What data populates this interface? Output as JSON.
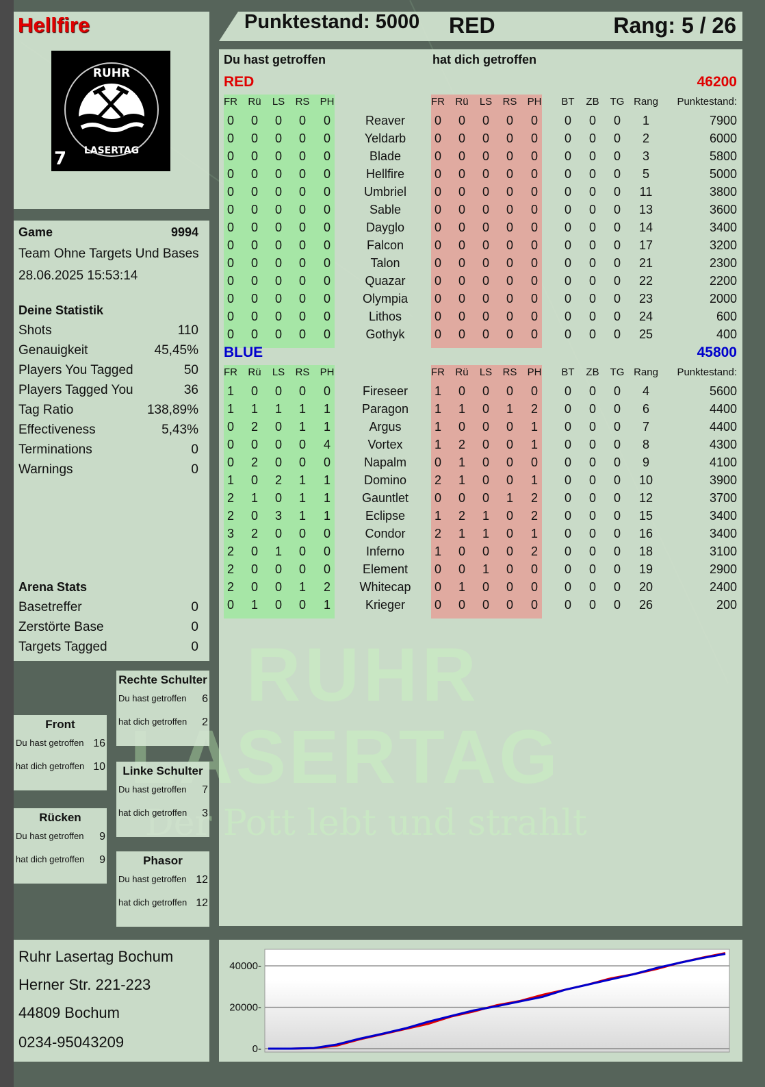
{
  "player": {
    "name": "Hellfire",
    "logo_text": "RUHR LASERTAG",
    "logo_number": "7"
  },
  "header": {
    "score_label": "Punktestand: 5000",
    "team": "RED",
    "rank_label": "Rang: 5 / 26"
  },
  "game": {
    "label": "Game",
    "number": "9994",
    "mode": "Team Ohne Targets Und Bases",
    "datetime": "28.06.2025 15:53:14"
  },
  "stats": {
    "title": "Deine Statistik",
    "items": [
      {
        "label": "Shots",
        "value": "110"
      },
      {
        "label": "Genauigkeit",
        "value": "45,45%"
      },
      {
        "label": "Players You Tagged",
        "value": "50"
      },
      {
        "label": "Players Tagged You",
        "value": "36"
      },
      {
        "label": "Tag Ratio",
        "value": "138,89%"
      },
      {
        "label": "Effectiveness",
        "value": "5,43%"
      },
      {
        "label": "Terminations",
        "value": "0"
      },
      {
        "label": "Warnings",
        "value": "0"
      }
    ]
  },
  "arena": {
    "title": "Arena Stats",
    "items": [
      {
        "label": "Basetreffer",
        "value": "0"
      },
      {
        "label": "Zerstörte Base",
        "value": "0"
      },
      {
        "label": "Targets Tagged",
        "value": "0"
      }
    ]
  },
  "hitzones": [
    {
      "title": "Rechte Schulter",
      "you_hit_label": "Du hast getroffen",
      "you_hit": "6",
      "hit_you_label": "hat dich getroffen",
      "hit_you": "2"
    },
    {
      "title": "Front",
      "you_hit_label": "Du hast getroffen",
      "you_hit": "16",
      "hit_you_label": "hat dich getroffen",
      "hit_you": "10"
    },
    {
      "title": "Linke Schulter",
      "you_hit_label": "Du hast getroffen",
      "you_hit": "7",
      "hit_you_label": "hat dich getroffen",
      "hit_you": "3"
    },
    {
      "title": "Rücken",
      "you_hit_label": "Du hast getroffen",
      "you_hit": "9",
      "hit_you_label": "hat dich getroffen",
      "hit_you": "9"
    },
    {
      "title": "Phasor",
      "you_hit_label": "Du hast getroffen",
      "you_hit": "12",
      "hit_you_label": "hat dich getroffen",
      "hit_you": "12"
    }
  ],
  "address": {
    "line1": "Ruhr Lasertag Bochum",
    "line2": "Herner Str. 221-223",
    "line3": "44809 Bochum",
    "line4": "0234-95043209"
  },
  "watermark": {
    "line1": "RUHR",
    "line2": "LASERTAG",
    "line3": "Der Pott lebt und strahlt"
  },
  "table": {
    "you_hit_heading": "Du hast getroffen",
    "hit_you_heading": "hat dich getroffen",
    "hit_columns": [
      "FR",
      "Rü",
      "LS",
      "RS",
      "PH"
    ],
    "extra_columns": [
      "BT",
      "ZB",
      "TG",
      "Rang",
      "Punktestand:"
    ],
    "colors": {
      "you_hit_bg": "#a6e6a6",
      "hit_you_bg": "#e0aaa0",
      "red": "#e00000",
      "blue": "#0000cc"
    },
    "teams": [
      {
        "name": "RED",
        "score": "46200",
        "color": "#e00000",
        "players": [
          {
            "name": "Reaver",
            "you_hit": [
              0,
              0,
              0,
              0,
              0
            ],
            "hit_you": [
              0,
              0,
              0,
              0,
              0
            ],
            "bt": 0,
            "zb": 0,
            "tg": 0,
            "rank": 1,
            "score": 7900
          },
          {
            "name": "Yeldarb",
            "you_hit": [
              0,
              0,
              0,
              0,
              0
            ],
            "hit_you": [
              0,
              0,
              0,
              0,
              0
            ],
            "bt": 0,
            "zb": 0,
            "tg": 0,
            "rank": 2,
            "score": 6000
          },
          {
            "name": "Blade",
            "you_hit": [
              0,
              0,
              0,
              0,
              0
            ],
            "hit_you": [
              0,
              0,
              0,
              0,
              0
            ],
            "bt": 0,
            "zb": 0,
            "tg": 0,
            "rank": 3,
            "score": 5800
          },
          {
            "name": "Hellfire",
            "you_hit": [
              0,
              0,
              0,
              0,
              0
            ],
            "hit_you": [
              0,
              0,
              0,
              0,
              0
            ],
            "bt": 0,
            "zb": 0,
            "tg": 0,
            "rank": 5,
            "score": 5000
          },
          {
            "name": "Umbriel",
            "you_hit": [
              0,
              0,
              0,
              0,
              0
            ],
            "hit_you": [
              0,
              0,
              0,
              0,
              0
            ],
            "bt": 0,
            "zb": 0,
            "tg": 0,
            "rank": 11,
            "score": 3800
          },
          {
            "name": "Sable",
            "you_hit": [
              0,
              0,
              0,
              0,
              0
            ],
            "hit_you": [
              0,
              0,
              0,
              0,
              0
            ],
            "bt": 0,
            "zb": 0,
            "tg": 0,
            "rank": 13,
            "score": 3600
          },
          {
            "name": "Dayglo",
            "you_hit": [
              0,
              0,
              0,
              0,
              0
            ],
            "hit_you": [
              0,
              0,
              0,
              0,
              0
            ],
            "bt": 0,
            "zb": 0,
            "tg": 0,
            "rank": 14,
            "score": 3400
          },
          {
            "name": "Falcon",
            "you_hit": [
              0,
              0,
              0,
              0,
              0
            ],
            "hit_you": [
              0,
              0,
              0,
              0,
              0
            ],
            "bt": 0,
            "zb": 0,
            "tg": 0,
            "rank": 17,
            "score": 3200
          },
          {
            "name": "Talon",
            "you_hit": [
              0,
              0,
              0,
              0,
              0
            ],
            "hit_you": [
              0,
              0,
              0,
              0,
              0
            ],
            "bt": 0,
            "zb": 0,
            "tg": 0,
            "rank": 21,
            "score": 2300
          },
          {
            "name": "Quazar",
            "you_hit": [
              0,
              0,
              0,
              0,
              0
            ],
            "hit_you": [
              0,
              0,
              0,
              0,
              0
            ],
            "bt": 0,
            "zb": 0,
            "tg": 0,
            "rank": 22,
            "score": 2200
          },
          {
            "name": "Olympia",
            "you_hit": [
              0,
              0,
              0,
              0,
              0
            ],
            "hit_you": [
              0,
              0,
              0,
              0,
              0
            ],
            "bt": 0,
            "zb": 0,
            "tg": 0,
            "rank": 23,
            "score": 2000
          },
          {
            "name": "Lithos",
            "you_hit": [
              0,
              0,
              0,
              0,
              0
            ],
            "hit_you": [
              0,
              0,
              0,
              0,
              0
            ],
            "bt": 0,
            "zb": 0,
            "tg": 0,
            "rank": 24,
            "score": 600
          },
          {
            "name": "Gothyk",
            "you_hit": [
              0,
              0,
              0,
              0,
              0
            ],
            "hit_you": [
              0,
              0,
              0,
              0,
              0
            ],
            "bt": 0,
            "zb": 0,
            "tg": 0,
            "rank": 25,
            "score": 400
          }
        ]
      },
      {
        "name": "BLUE",
        "score": "45800",
        "color": "#0000cc",
        "players": [
          {
            "name": "Fireseer",
            "you_hit": [
              1,
              0,
              0,
              0,
              0
            ],
            "hit_you": [
              1,
              0,
              0,
              0,
              0
            ],
            "bt": 0,
            "zb": 0,
            "tg": 0,
            "rank": 4,
            "score": 5600
          },
          {
            "name": "Paragon",
            "you_hit": [
              1,
              1,
              1,
              1,
              1
            ],
            "hit_you": [
              1,
              1,
              0,
              1,
              2
            ],
            "bt": 0,
            "zb": 0,
            "tg": 0,
            "rank": 6,
            "score": 4400
          },
          {
            "name": "Argus",
            "you_hit": [
              0,
              2,
              0,
              1,
              1
            ],
            "hit_you": [
              1,
              0,
              0,
              0,
              1
            ],
            "bt": 0,
            "zb": 0,
            "tg": 0,
            "rank": 7,
            "score": 4400
          },
          {
            "name": "Vortex",
            "you_hit": [
              0,
              0,
              0,
              0,
              4
            ],
            "hit_you": [
              1,
              2,
              0,
              0,
              1
            ],
            "bt": 0,
            "zb": 0,
            "tg": 0,
            "rank": 8,
            "score": 4300
          },
          {
            "name": "Napalm",
            "you_hit": [
              0,
              2,
              0,
              0,
              0
            ],
            "hit_you": [
              0,
              1,
              0,
              0,
              0
            ],
            "bt": 0,
            "zb": 0,
            "tg": 0,
            "rank": 9,
            "score": 4100
          },
          {
            "name": "Domino",
            "you_hit": [
              1,
              0,
              2,
              1,
              1
            ],
            "hit_you": [
              2,
              1,
              0,
              0,
              1
            ],
            "bt": 0,
            "zb": 0,
            "tg": 0,
            "rank": 10,
            "score": 3900
          },
          {
            "name": "Gauntlet",
            "you_hit": [
              2,
              1,
              0,
              1,
              1
            ],
            "hit_you": [
              0,
              0,
              0,
              1,
              2
            ],
            "bt": 0,
            "zb": 0,
            "tg": 0,
            "rank": 12,
            "score": 3700
          },
          {
            "name": "Eclipse",
            "you_hit": [
              2,
              0,
              3,
              1,
              1
            ],
            "hit_you": [
              1,
              2,
              1,
              0,
              2
            ],
            "bt": 0,
            "zb": 0,
            "tg": 0,
            "rank": 15,
            "score": 3400
          },
          {
            "name": "Condor",
            "you_hit": [
              3,
              2,
              0,
              0,
              0
            ],
            "hit_you": [
              2,
              1,
              1,
              0,
              1
            ],
            "bt": 0,
            "zb": 0,
            "tg": 0,
            "rank": 16,
            "score": 3400
          },
          {
            "name": "Inferno",
            "you_hit": [
              2,
              0,
              1,
              0,
              0
            ],
            "hit_you": [
              1,
              0,
              0,
              0,
              2
            ],
            "bt": 0,
            "zb": 0,
            "tg": 0,
            "rank": 18,
            "score": 3100
          },
          {
            "name": "Element",
            "you_hit": [
              2,
              0,
              0,
              0,
              0
            ],
            "hit_you": [
              0,
              0,
              1,
              0,
              0
            ],
            "bt": 0,
            "zb": 0,
            "tg": 0,
            "rank": 19,
            "score": 2900
          },
          {
            "name": "Whitecap",
            "you_hit": [
              2,
              0,
              0,
              1,
              2
            ],
            "hit_you": [
              0,
              1,
              0,
              0,
              0
            ],
            "bt": 0,
            "zb": 0,
            "tg": 0,
            "rank": 20,
            "score": 2400
          },
          {
            "name": "Krieger",
            "you_hit": [
              0,
              1,
              0,
              0,
              1
            ],
            "hit_you": [
              0,
              0,
              0,
              0,
              0
            ],
            "bt": 0,
            "zb": 0,
            "tg": 0,
            "rank": 26,
            "score": 200
          }
        ]
      }
    ]
  },
  "chart_data": {
    "type": "line",
    "ylim": [
      0,
      48000
    ],
    "yticks": [
      0,
      20000,
      40000
    ],
    "grid": true,
    "series": [
      {
        "color": "#e00000",
        "values": [
          0,
          0,
          200,
          1500,
          4500,
          7000,
          9500,
          12000,
          15500,
          18000,
          21000,
          23000,
          26000,
          28500,
          31000,
          34000,
          36000,
          38500,
          41500,
          44000,
          46200
        ]
      },
      {
        "color": "#0000cc",
        "values": [
          0,
          0,
          300,
          2000,
          4800,
          7200,
          9800,
          13000,
          15800,
          18500,
          20500,
          22800,
          25000,
          28500,
          31000,
          33500,
          36000,
          39000,
          41500,
          43800,
          45800
        ]
      }
    ]
  }
}
